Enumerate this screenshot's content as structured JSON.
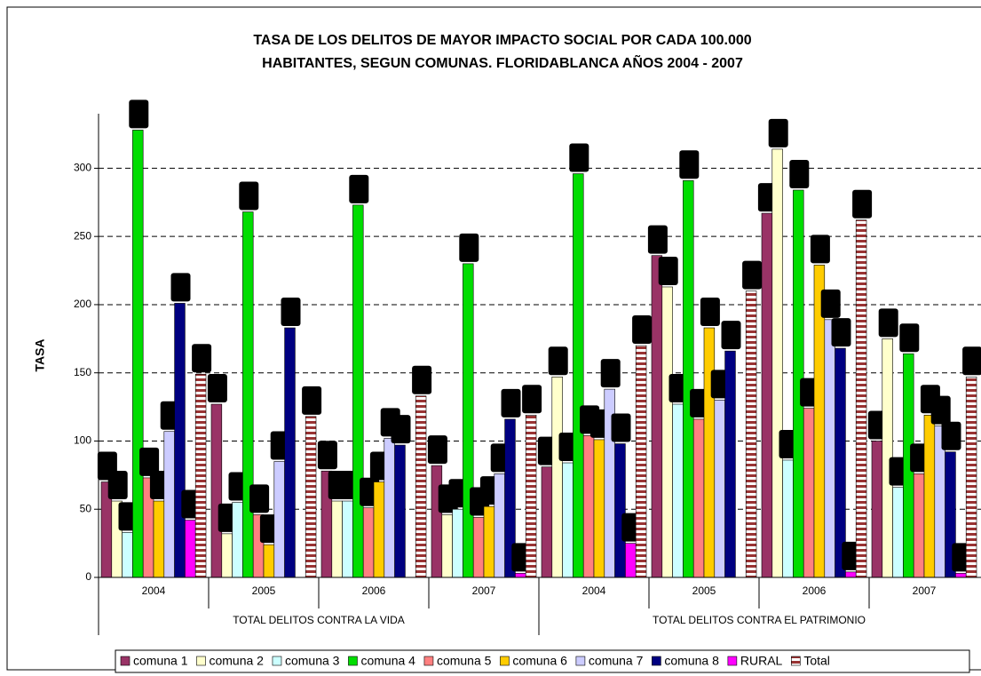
{
  "chart_data": {
    "type": "bar",
    "title": [
      "TASA  DE LOS DELITOS DE MAYOR IMPACTO SOCIAL POR CADA 100.000",
      "HABITANTES, SEGUN COMUNAS. FLORIDABLANCA AÑOS 2004 - 2007"
    ],
    "y_label": "TASA",
    "category_groups": [
      "TOTAL DELITOS CONTRA LA VIDA",
      "TOTAL DELITOS CONTRA EL PATRIMONIO"
    ],
    "categories": [
      "2004",
      "2005",
      "2006",
      "2007",
      "2004",
      "2005",
      "2006",
      "2007"
    ],
    "series": [
      {
        "name": "comuna 1",
        "color": "#993366",
        "values": [
          70,
          127,
          78,
          82,
          81,
          236,
          267,
          100
        ]
      },
      {
        "name": "comuna 2",
        "color": "#ffffcc",
        "values": [
          56,
          32,
          56,
          46,
          147,
          213,
          314,
          175
        ]
      },
      {
        "name": "comuna 3",
        "color": "#ccffff",
        "values": [
          33,
          55,
          56,
          50,
          84,
          127,
          86,
          66
        ]
      },
      {
        "name": "comuna 4",
        "color": "#00dd00",
        "values": [
          328,
          268,
          273,
          230,
          296,
          291,
          284,
          164
        ]
      },
      {
        "name": "comuna 5",
        "color": "#ff8080",
        "values": [
          73,
          46,
          51,
          44,
          104,
          116,
          124,
          76
        ]
      },
      {
        "name": "comuna 6",
        "color": "#ffcc00",
        "values": [
          56,
          24,
          70,
          52,
          101,
          183,
          229,
          119
        ]
      },
      {
        "name": "comuna 7",
        "color": "#ccccff",
        "values": [
          107,
          85,
          102,
          76,
          138,
          130,
          189,
          111
        ]
      },
      {
        "name": "comuna 8",
        "color": "#000080",
        "values": [
          201,
          183,
          97,
          116,
          98,
          166,
          168,
          92
        ]
      },
      {
        "name": "RURAL",
        "color": "#ff00ff",
        "values": [
          42,
          0,
          0,
          3,
          25,
          0,
          4,
          3
        ]
      },
      {
        "name": "Total",
        "color": "#993333",
        "striped": true,
        "values": [
          149,
          118,
          133,
          119,
          170,
          210,
          262,
          147
        ]
      }
    ],
    "ylim": [
      0,
      340
    ],
    "yticks": [
      0,
      50,
      100,
      150,
      200,
      250,
      300
    ],
    "grid": true,
    "legend": "bottom"
  }
}
